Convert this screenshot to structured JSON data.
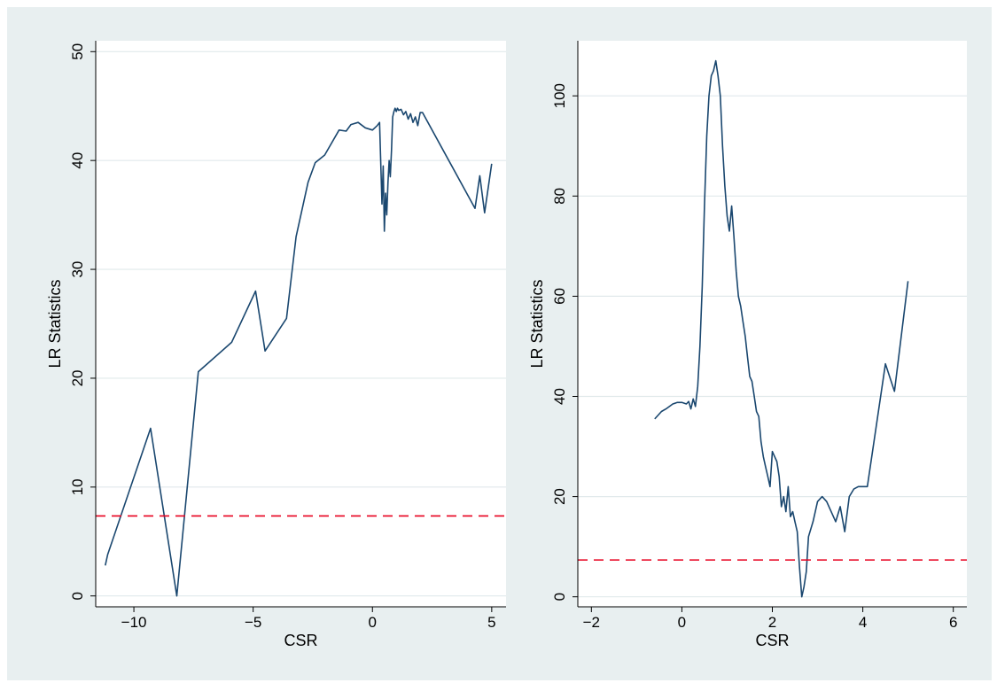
{
  "colors": {
    "outer_background": "#e8eff0",
    "plot_background": "#ffffff",
    "grid": "#e1e9eb",
    "series_line": "#1a476f",
    "critical_line": "#e8001e"
  },
  "chart_data": [
    {
      "type": "line",
      "xlabel": "CSR",
      "ylabel": "LR Statistics",
      "xlim": [
        -11.6,
        5.6
      ],
      "ylim": [
        -1,
        51
      ],
      "xticks": [
        -10,
        -5,
        0,
        5
      ],
      "xtick_labels": [
        "−10",
        "−5",
        "0",
        "5"
      ],
      "yticks": [
        0,
        10,
        20,
        30,
        40,
        50
      ],
      "ytick_labels": [
        "0",
        "10",
        "20",
        "30",
        "40",
        "50"
      ],
      "grid": true,
      "hline": 7.35,
      "series": [
        {
          "x": [
            -11.2,
            -11.1,
            -9.3,
            -8.2,
            -7.3,
            -5.9,
            -4.9,
            -4.5,
            -3.6,
            -3.2,
            -2.7,
            -2.4,
            -2.0,
            -1.4,
            -1.1,
            -0.9,
            -0.6,
            -0.3,
            0.0,
            0.2,
            0.3,
            0.4,
            0.45,
            0.5,
            0.55,
            0.6,
            0.65,
            0.7,
            0.75,
            0.8,
            0.85,
            0.9,
            0.95,
            1.0,
            1.05,
            1.1,
            1.2,
            1.3,
            1.4,
            1.5,
            1.6,
            1.7,
            1.8,
            1.9,
            2.0,
            2.1,
            4.3,
            4.5,
            4.7,
            5.0
          ],
          "y": [
            2.8,
            3.8,
            15.4,
            0.0,
            20.6,
            23.3,
            28.0,
            22.5,
            25.5,
            33.0,
            38.0,
            39.8,
            40.5,
            42.8,
            42.7,
            43.3,
            43.5,
            43.0,
            42.8,
            43.2,
            43.5,
            36.0,
            39.5,
            33.5,
            37.0,
            35.0,
            38.0,
            40.0,
            38.5,
            41.0,
            44.0,
            44.5,
            44.8,
            44.5,
            44.8,
            44.6,
            44.7,
            44.2,
            44.5,
            43.8,
            44.3,
            43.5,
            44.0,
            43.2,
            44.4,
            44.4,
            35.6,
            38.6,
            35.2,
            39.7
          ]
        }
      ]
    },
    {
      "type": "line",
      "xlabel": "CSR",
      "ylabel": "LR Statistics",
      "xlim": [
        -2.3,
        6.3
      ],
      "ylim": [
        -2,
        111
      ],
      "xticks": [
        -2,
        0,
        2,
        4,
        6
      ],
      "xtick_labels": [
        "−2",
        "0",
        "2",
        "4",
        "6"
      ],
      "yticks": [
        0,
        20,
        40,
        60,
        80,
        100
      ],
      "ytick_labels": [
        "0",
        "20",
        "40",
        "60",
        "80",
        "100"
      ],
      "grid": true,
      "hline": 7.35,
      "series": [
        {
          "x": [
            -0.6,
            -0.45,
            -0.35,
            -0.2,
            -0.1,
            0.0,
            0.1,
            0.15,
            0.2,
            0.25,
            0.3,
            0.35,
            0.4,
            0.45,
            0.5,
            0.55,
            0.6,
            0.65,
            0.7,
            0.75,
            0.8,
            0.85,
            0.9,
            0.95,
            1.0,
            1.05,
            1.1,
            1.15,
            1.2,
            1.25,
            1.3,
            1.35,
            1.4,
            1.45,
            1.5,
            1.55,
            1.6,
            1.65,
            1.7,
            1.75,
            1.8,
            1.85,
            1.9,
            1.95,
            2.0,
            2.05,
            2.1,
            2.15,
            2.2,
            2.25,
            2.3,
            2.35,
            2.4,
            2.45,
            2.5,
            2.55,
            2.6,
            2.65,
            2.7,
            2.75,
            2.8,
            2.9,
            3.0,
            3.1,
            3.2,
            3.3,
            3.4,
            3.5,
            3.6,
            3.7,
            3.8,
            3.9,
            4.1,
            4.5,
            4.7,
            5.0
          ],
          "y": [
            35.5,
            37.0,
            37.5,
            38.5,
            38.8,
            38.8,
            38.5,
            39.0,
            37.5,
            39.5,
            38.0,
            42.0,
            50.0,
            62.0,
            78.0,
            92.0,
            100.0,
            104.0,
            105.0,
            107.0,
            104.0,
            100.0,
            90.0,
            82.0,
            76.0,
            73.0,
            78.0,
            72.0,
            65.0,
            60.0,
            58.0,
            55.0,
            52.0,
            48.0,
            44.0,
            43.0,
            40.0,
            37.0,
            36.0,
            31.0,
            28.0,
            26.0,
            24.0,
            22.0,
            29.0,
            28.0,
            27.0,
            24.0,
            18.0,
            20.0,
            17.0,
            22.0,
            16.0,
            17.0,
            15.0,
            13.0,
            6.0,
            0.0,
            2.0,
            5.0,
            12.0,
            15.0,
            19.0,
            20.0,
            19.0,
            17.0,
            15.0,
            18.0,
            13.0,
            20.0,
            21.5,
            22.0,
            22.0,
            46.5,
            41.0,
            63.0
          ]
        }
      ]
    }
  ]
}
